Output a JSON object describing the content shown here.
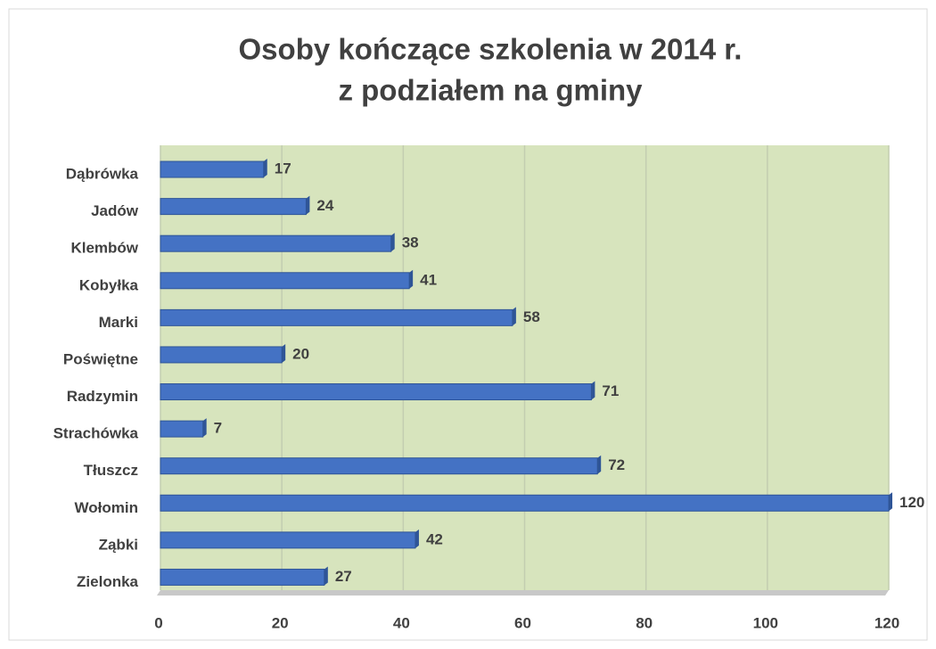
{
  "chart_data": {
    "type": "bar",
    "orientation": "horizontal",
    "title": [
      "Osoby kończące szkolenia w 2014 r.",
      "z podziałem na gminy"
    ],
    "categories": [
      "Dąbrówka",
      "Jadów",
      "Klembów",
      "Kobyłka",
      "Marki",
      "Poświętne",
      "Radzymin",
      "Strachówka",
      "Tłuszcz",
      "Wołomin",
      "Ząbki",
      "Zielonka"
    ],
    "values": [
      17,
      24,
      38,
      41,
      58,
      20,
      71,
      7,
      72,
      120,
      42,
      27
    ],
    "color": "#4472c4",
    "xlim": [
      0,
      120
    ],
    "xticks": [
      0,
      20,
      40,
      60,
      80,
      100,
      120
    ],
    "grid": true
  }
}
